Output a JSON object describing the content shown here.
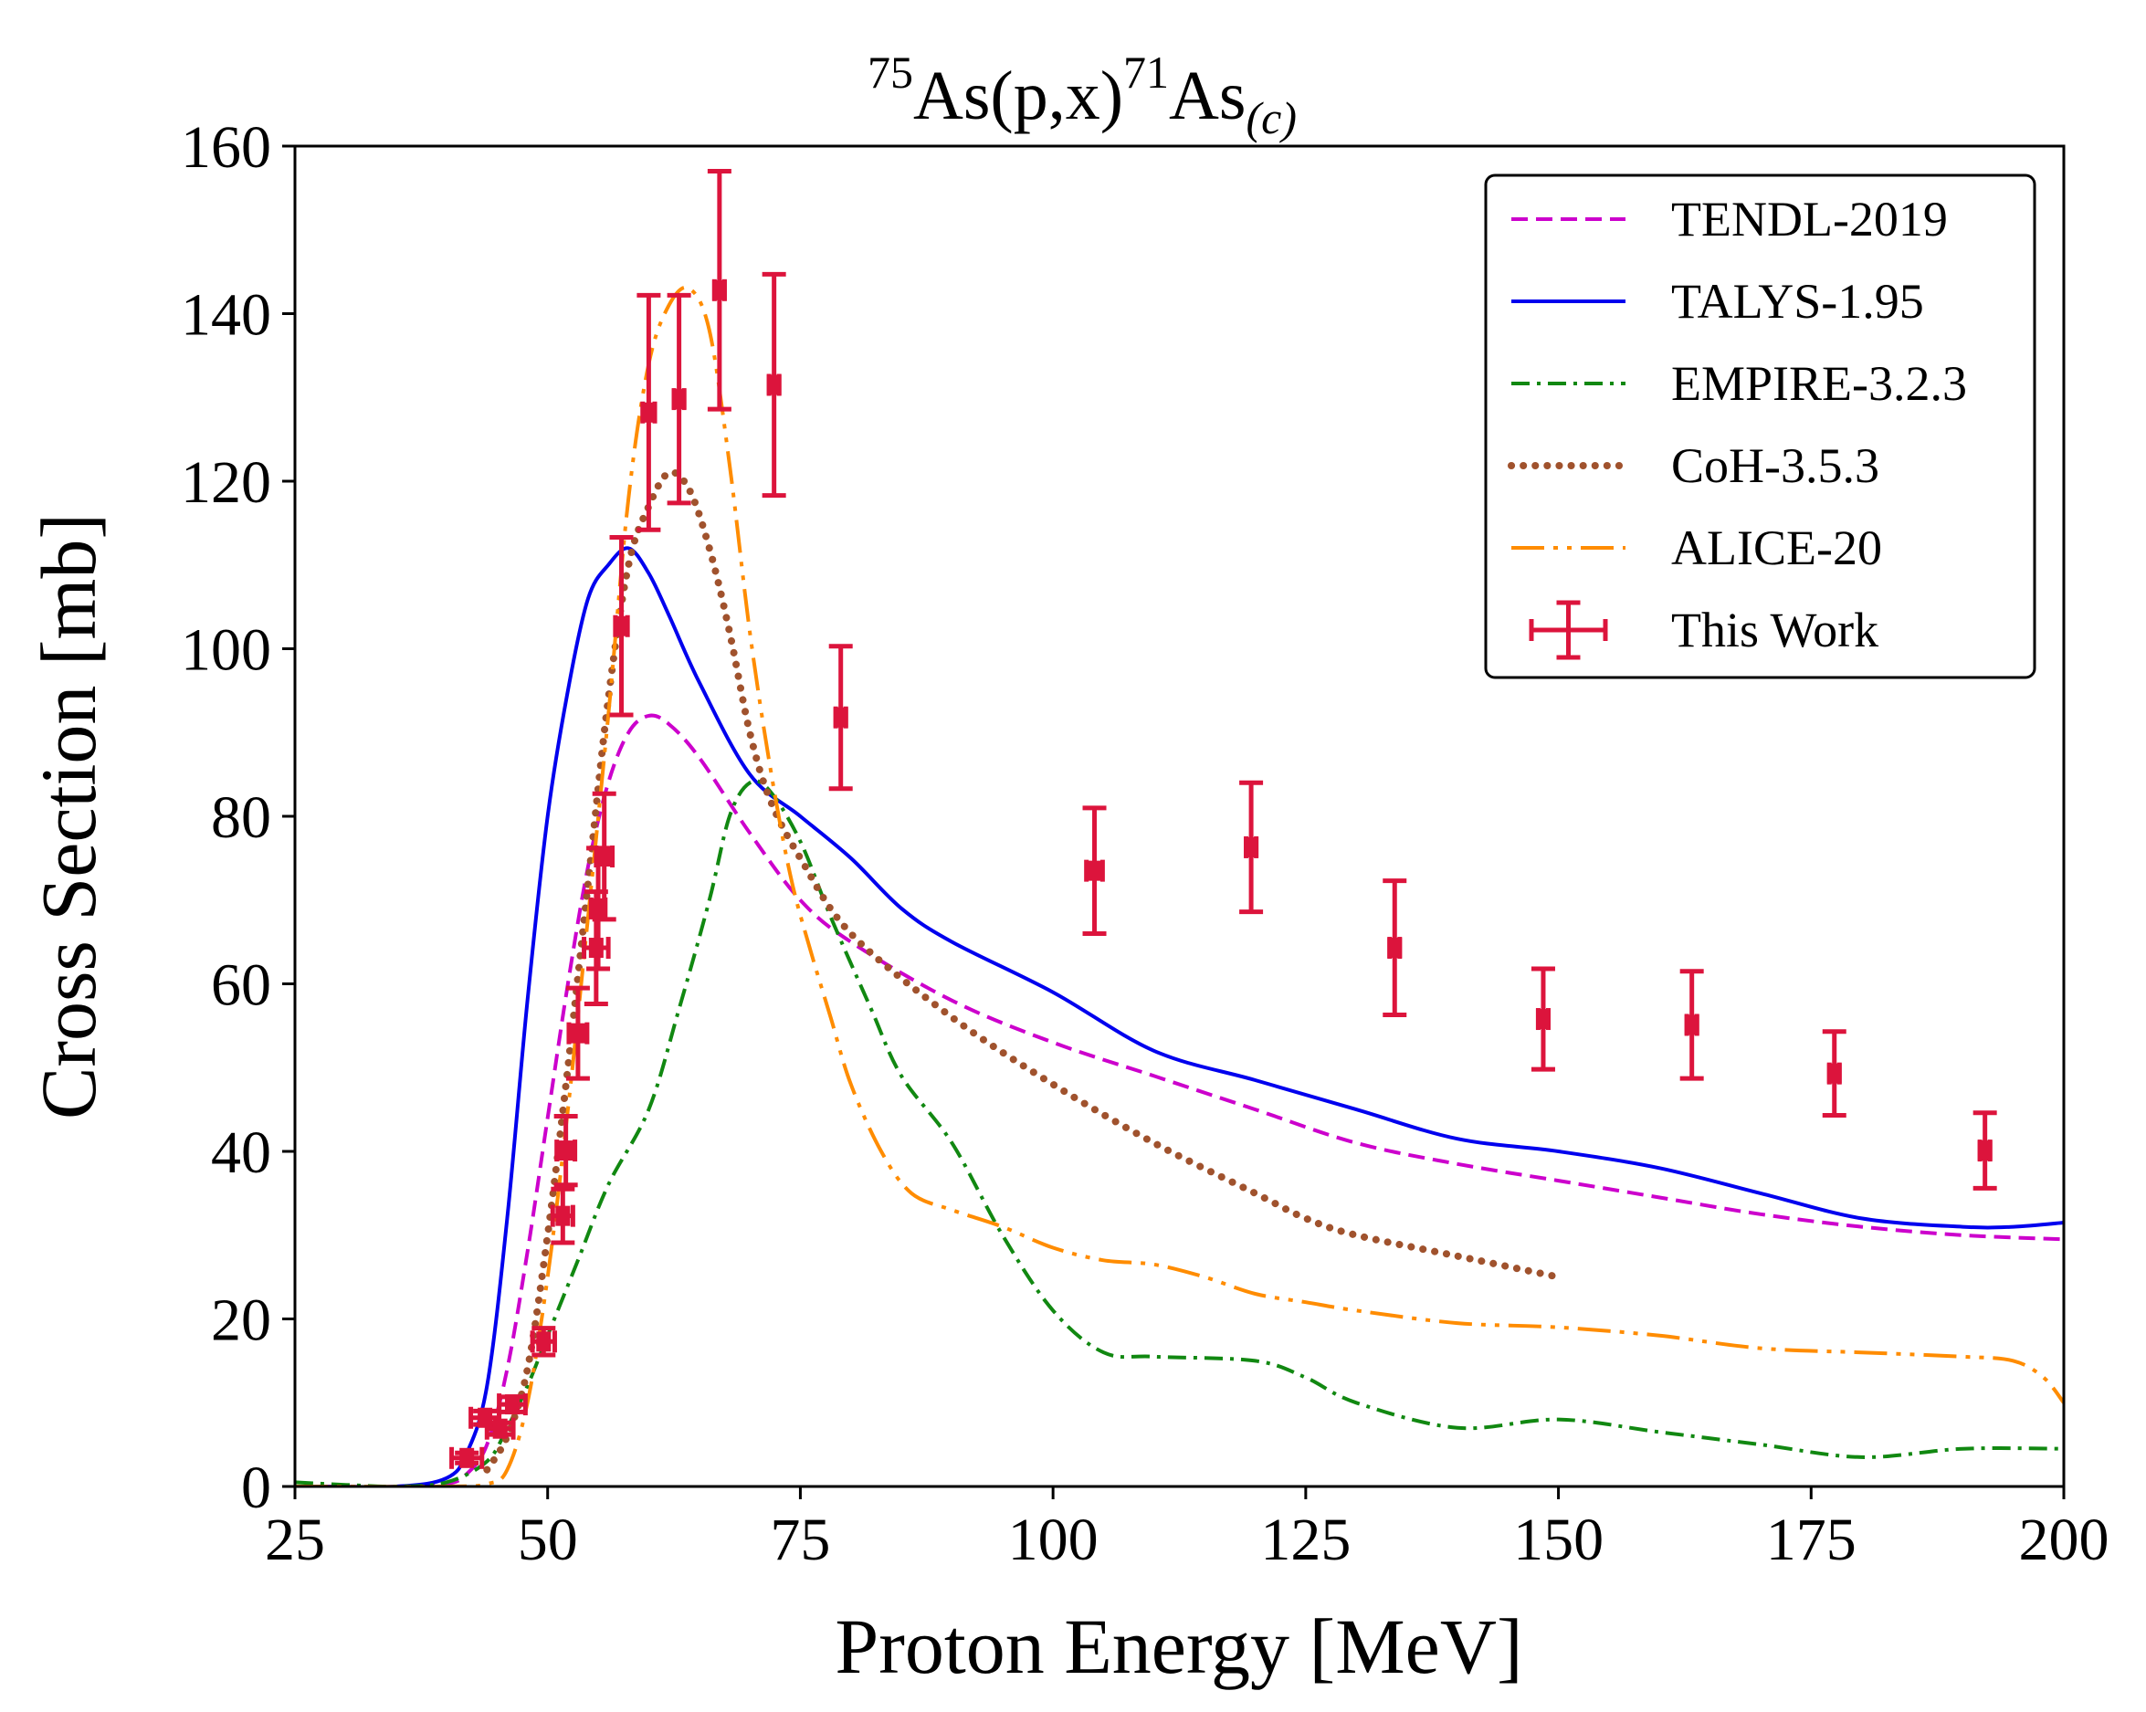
{
  "chart_data": {
    "type": "line",
    "title": {
      "target_mass": "75",
      "target": "As(p,x)",
      "product_mass": "71",
      "product": "As",
      "subscript": "(c)"
    },
    "xlabel": "Proton Energy [MeV]",
    "ylabel": "Cross Section [mb]",
    "xlim": [
      25,
      200
    ],
    "ylim": [
      0,
      160
    ],
    "xticks": [
      25,
      50,
      75,
      100,
      125,
      150,
      175,
      200
    ],
    "yticks": [
      0,
      20,
      40,
      60,
      80,
      100,
      120,
      140,
      160
    ],
    "grid": false,
    "legend_position": "top-right",
    "series": [
      {
        "name": "TENDL-2019",
        "style": "dashed",
        "color": "#cc00cc",
        "points": [
          [
            25,
            0
          ],
          [
            35,
            0
          ],
          [
            40,
            0.3
          ],
          [
            42,
            1.5
          ],
          [
            44,
            5
          ],
          [
            46,
            14
          ],
          [
            48,
            28
          ],
          [
            50,
            44
          ],
          [
            52,
            60
          ],
          [
            54,
            74
          ],
          [
            56,
            84
          ],
          [
            58,
            90
          ],
          [
            60,
            92
          ],
          [
            62,
            91
          ],
          [
            65,
            87
          ],
          [
            70,
            78
          ],
          [
            75,
            70
          ],
          [
            80,
            65
          ],
          [
            90,
            58
          ],
          [
            100,
            53
          ],
          [
            110,
            49
          ],
          [
            120,
            45
          ],
          [
            130,
            41
          ],
          [
            140,
            38.5
          ],
          [
            150,
            36.5
          ],
          [
            160,
            34.5
          ],
          [
            170,
            32.5
          ],
          [
            180,
            31
          ],
          [
            190,
            30
          ],
          [
            200,
            29.5
          ]
        ]
      },
      {
        "name": "TALYS-1.95",
        "style": "solid",
        "color": "#0000ee",
        "points": [
          [
            25,
            0
          ],
          [
            35,
            0
          ],
          [
            40,
            1
          ],
          [
            42,
            4
          ],
          [
            44,
            12
          ],
          [
            46,
            32
          ],
          [
            48,
            58
          ],
          [
            50,
            80
          ],
          [
            52,
            95
          ],
          [
            54,
            106
          ],
          [
            56,
            110
          ],
          [
            58,
            112
          ],
          [
            60,
            109
          ],
          [
            62,
            104
          ],
          [
            65,
            96
          ],
          [
            70,
            85
          ],
          [
            75,
            80
          ],
          [
            80,
            75
          ],
          [
            85,
            69
          ],
          [
            90,
            65
          ],
          [
            100,
            59
          ],
          [
            110,
            52
          ],
          [
            120,
            48.5
          ],
          [
            130,
            45
          ],
          [
            140,
            41.5
          ],
          [
            150,
            40
          ],
          [
            160,
            38
          ],
          [
            170,
            35
          ],
          [
            180,
            32
          ],
          [
            190,
            31
          ],
          [
            195,
            31
          ],
          [
            200,
            31.5
          ]
        ]
      },
      {
        "name": "EMPIRE-3.2.3",
        "style": "dashdot",
        "color": "#118811",
        "points": [
          [
            25,
            0.5
          ],
          [
            30,
            0.2
          ],
          [
            35,
            0
          ],
          [
            40,
            0.5
          ],
          [
            44,
            3
          ],
          [
            46,
            7
          ],
          [
            48,
            12
          ],
          [
            50,
            18
          ],
          [
            53,
            27
          ],
          [
            56,
            36
          ],
          [
            60,
            45
          ],
          [
            63,
            57
          ],
          [
            66,
            70
          ],
          [
            68,
            80
          ],
          [
            70,
            84
          ],
          [
            72,
            83
          ],
          [
            75,
            77
          ],
          [
            78,
            68
          ],
          [
            82,
            57
          ],
          [
            85,
            49
          ],
          [
            90,
            41
          ],
          [
            95,
            30
          ],
          [
            100,
            21
          ],
          [
            105,
            16
          ],
          [
            110,
            15.5
          ],
          [
            120,
            15
          ],
          [
            125,
            13
          ],
          [
            130,
            10
          ],
          [
            140,
            7
          ],
          [
            150,
            8
          ],
          [
            160,
            6.5
          ],
          [
            170,
            5
          ],
          [
            180,
            3.5
          ],
          [
            190,
            4.5
          ],
          [
            200,
            4.5
          ]
        ]
      },
      {
        "name": "CoH-3.5.3",
        "style": "dotted",
        "color": "#a0522d",
        "points": [
          [
            44,
            2
          ],
          [
            46,
            6
          ],
          [
            48,
            14
          ],
          [
            50,
            30
          ],
          [
            52,
            50
          ],
          [
            54,
            72
          ],
          [
            56,
            94
          ],
          [
            58,
            110
          ],
          [
            60,
            117
          ],
          [
            62,
            121
          ],
          [
            64,
            119
          ],
          [
            66,
            112
          ],
          [
            68,
            102
          ],
          [
            70,
            90
          ],
          [
            72,
            82
          ],
          [
            75,
            75
          ],
          [
            80,
            66
          ],
          [
            90,
            56
          ],
          [
            100,
            48
          ],
          [
            110,
            41
          ],
          [
            120,
            35
          ],
          [
            125,
            32
          ],
          [
            130,
            30
          ],
          [
            140,
            27.5
          ],
          [
            150,
            25
          ]
        ]
      },
      {
        "name": "ALICE-20",
        "style": "dashdotdot",
        "color": "#ff8c00",
        "points": [
          [
            25,
            0
          ],
          [
            40,
            0
          ],
          [
            44,
            0.3
          ],
          [
            46,
            2
          ],
          [
            48,
            10
          ],
          [
            50,
            25
          ],
          [
            52,
            45
          ],
          [
            54,
            68
          ],
          [
            56,
            92
          ],
          [
            58,
            118
          ],
          [
            60,
            134
          ],
          [
            62,
            141
          ],
          [
            64,
            143
          ],
          [
            66,
            138
          ],
          [
            68,
            122
          ],
          [
            70,
            102
          ],
          [
            72,
            86
          ],
          [
            74,
            73
          ],
          [
            76,
            64
          ],
          [
            78,
            56
          ],
          [
            80,
            48
          ],
          [
            83,
            40
          ],
          [
            86,
            35
          ],
          [
            90,
            33
          ],
          [
            95,
            31
          ],
          [
            100,
            28.5
          ],
          [
            105,
            27
          ],
          [
            110,
            26.5
          ],
          [
            115,
            25
          ],
          [
            120,
            23
          ],
          [
            125,
            22
          ],
          [
            130,
            21
          ],
          [
            140,
            19.5
          ],
          [
            150,
            19
          ],
          [
            160,
            18
          ],
          [
            170,
            16.5
          ],
          [
            180,
            16
          ],
          [
            190,
            15.5
          ],
          [
            195,
            15
          ],
          [
            198,
            13
          ],
          [
            200,
            10
          ]
        ]
      }
    ],
    "measurements": {
      "name": "This Work",
      "color": "#dc143c",
      "points": [
        {
          "x": 42.0,
          "y": 3.4,
          "xerr": 1.5,
          "yerr": 0.6
        },
        {
          "x": 43.8,
          "y": 8.2,
          "xerr": 1.4,
          "yerr": 0.8
        },
        {
          "x": 45.3,
          "y": 6.9,
          "xerr": 1.3,
          "yerr": 0.7
        },
        {
          "x": 46.5,
          "y": 9.8,
          "xerr": 1.3,
          "yerr": 0.9
        },
        {
          "x": 49.6,
          "y": 17.3,
          "xerr": 1.1,
          "yerr": 1.6
        },
        {
          "x": 51.5,
          "y": 32.3,
          "xerr": 1.0,
          "yerr": 3.2
        },
        {
          "x": 51.8,
          "y": 40.1,
          "xerr": 0.9,
          "yerr": 4.1
        },
        {
          "x": 53.0,
          "y": 54.1,
          "xerr": 0.9,
          "yerr": 5.4
        },
        {
          "x": 54.8,
          "y": 64.3,
          "xerr": 1.2,
          "yerr": 6.7
        },
        {
          "x": 55.0,
          "y": 69.0,
          "xerr": 0.7,
          "yerr": 7.2
        },
        {
          "x": 55.6,
          "y": 75.2,
          "xerr": 0.8,
          "yerr": 7.5
        },
        {
          "x": 57.3,
          "y": 102.7,
          "xerr": 0.6,
          "yerr": 10.6
        },
        {
          "x": 60.0,
          "y": 128.2,
          "xerr": 0.6,
          "yerr": 14.0
        },
        {
          "x": 63.0,
          "y": 129.8,
          "xerr": 0.5,
          "yerr": 12.4
        },
        {
          "x": 67.0,
          "y": 142.8,
          "xerr": 0.5,
          "yerr": 14.2
        },
        {
          "x": 72.4,
          "y": 131.5,
          "xerr": 0.5,
          "yerr": 13.2
        },
        {
          "x": 79.0,
          "y": 91.8,
          "xerr": 0.5,
          "yerr": 8.5
        },
        {
          "x": 104.1,
          "y": 73.5,
          "xerr": 0.8,
          "yerr": 7.5
        },
        {
          "x": 119.6,
          "y": 76.3,
          "xerr": 0.5,
          "yerr": 7.7
        },
        {
          "x": 133.8,
          "y": 64.3,
          "xerr": 0.5,
          "yerr": 8.0
        },
        {
          "x": 148.5,
          "y": 55.8,
          "xerr": 0.5,
          "yerr": 6.0
        },
        {
          "x": 163.2,
          "y": 55.1,
          "xerr": 0.5,
          "yerr": 6.4
        },
        {
          "x": 177.3,
          "y": 49.3,
          "xerr": 0.5,
          "yerr": 5.0
        },
        {
          "x": 192.2,
          "y": 40.1,
          "xerr": 0.5,
          "yerr": 4.5
        }
      ]
    }
  }
}
